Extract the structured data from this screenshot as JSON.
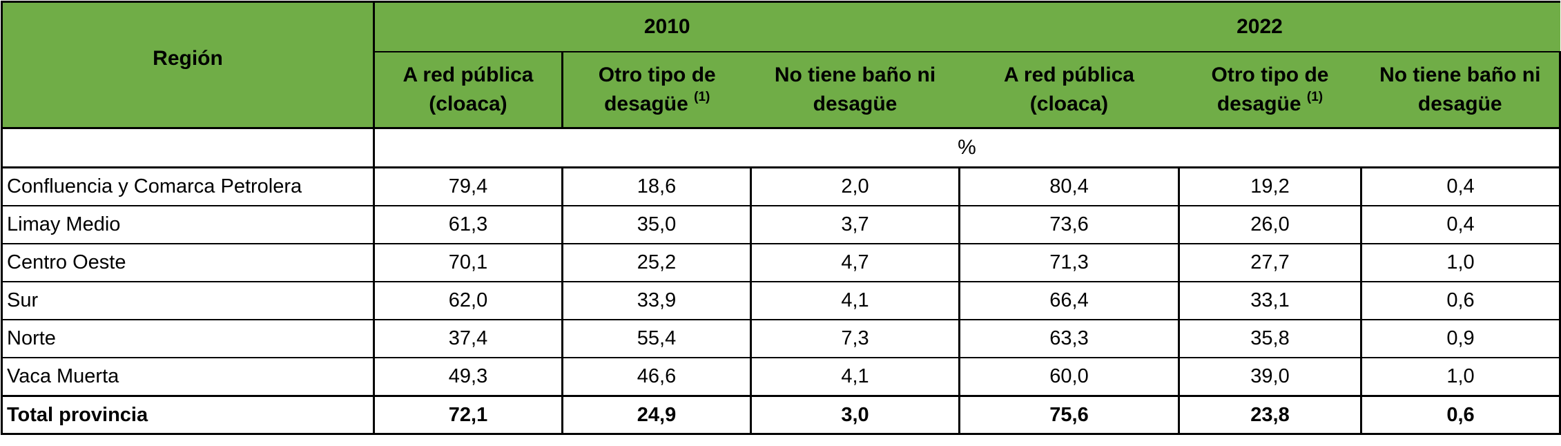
{
  "header": {
    "region_label": "Región",
    "years": [
      "2010",
      "2022"
    ],
    "columns": [
      {
        "line1": "A red pública",
        "line2": "(cloaca)",
        "sup": ""
      },
      {
        "line1": "Otro tipo de",
        "line2": "desagüe",
        "sup": "(1)"
      },
      {
        "line1": "No tiene baño ni",
        "line2": "desagüe",
        "sup": ""
      },
      {
        "line1": "A red pública",
        "line2": "(cloaca)",
        "sup": ""
      },
      {
        "line1": "Otro tipo de",
        "line2": "desagüe",
        "sup": "(1)"
      },
      {
        "line1": "No tiene baño ni",
        "line2": "desagüe",
        "sup": ""
      }
    ],
    "unit": "%"
  },
  "rows": [
    {
      "name": "Confluencia y Comarca Petrolera",
      "values": [
        "79,4",
        "18,6",
        "2,0",
        "80,4",
        "19,2",
        "0,4"
      ]
    },
    {
      "name": "Limay Medio",
      "values": [
        "61,3",
        "35,0",
        "3,7",
        "73,6",
        "26,0",
        "0,4"
      ]
    },
    {
      "name": "Centro Oeste",
      "values": [
        "70,1",
        "25,2",
        "4,7",
        "71,3",
        "27,7",
        "1,0"
      ]
    },
    {
      "name": "Sur",
      "values": [
        "62,0",
        "33,9",
        "4,1",
        "66,4",
        "33,1",
        "0,6"
      ]
    },
    {
      "name": "Norte",
      "values": [
        "37,4",
        "55,4",
        "7,3",
        "63,3",
        "35,8",
        "0,9"
      ]
    },
    {
      "name": "Vaca Muerta",
      "values": [
        "49,3",
        "46,6",
        "4,1",
        "60,0",
        "39,0",
        "1,0"
      ]
    }
  ],
  "total": {
    "name": "Total provincia",
    "values": [
      "72,1",
      "24,9",
      "3,0",
      "75,6",
      "23,8",
      "0,6"
    ]
  },
  "colors": {
    "header_bg": "#70ad47",
    "border": "#000000"
  }
}
